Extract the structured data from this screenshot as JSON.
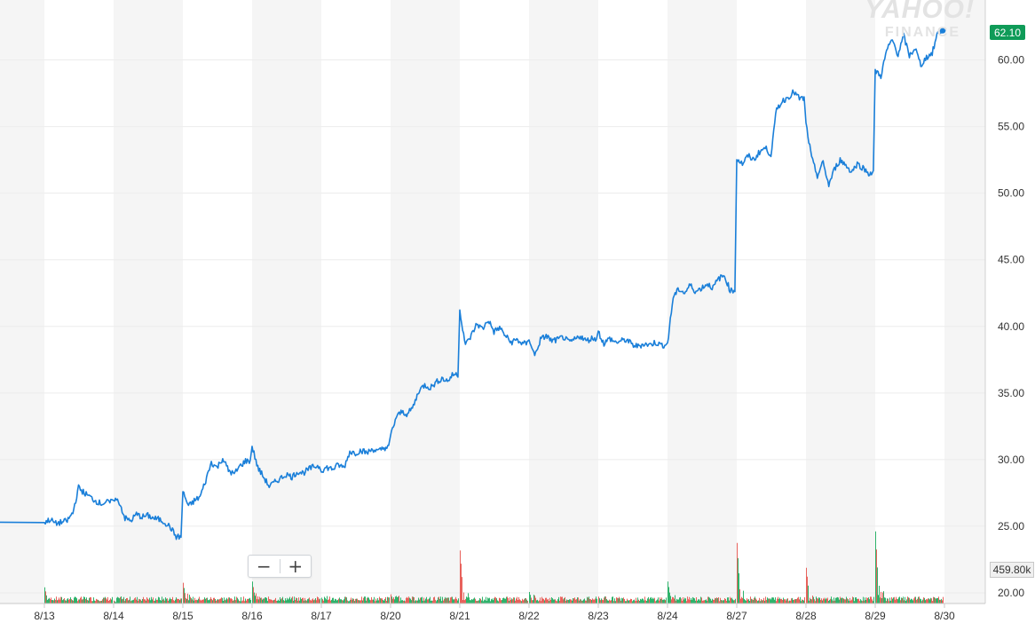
{
  "watermark": {
    "line1": "YAHOO!",
    "line2": "FINANCE"
  },
  "zoom": {
    "minus": "−",
    "plus": "+"
  },
  "current_price_label": "62.10",
  "volume_label": "459.80k",
  "colors": {
    "price_line": "#1a7fd9",
    "volume_up": "#2fb36b",
    "volume_down": "#e8625c",
    "price_badge": "#0f9b58",
    "band": "#f5f5f5",
    "grid": "#ececec"
  },
  "chart_data": {
    "type": "line",
    "title": "",
    "xlabel": "",
    "ylabel": "",
    "ylim": [
      19.2,
      64.5
    ],
    "yticks": [
      "20.00",
      "25.00",
      "30.00",
      "35.00",
      "40.00",
      "45.00",
      "50.00",
      "55.00",
      "60.00"
    ],
    "x_tick_labels": [
      "8/13",
      "8/14",
      "8/15",
      "8/16",
      "8/17",
      "8/20",
      "8/21",
      "8/22",
      "8/23",
      "8/24",
      "8/27",
      "8/28",
      "8/29",
      "8/30"
    ],
    "grid": true,
    "series": [
      {
        "values_by_day": [
          [
            25.3,
            25.5,
            25.2,
            25.3,
            25.4,
            26.0,
            27.9,
            27.5,
            27.2,
            26.9,
            26.7,
            26.8
          ],
          [
            27.1,
            26.8,
            25.6,
            25.4,
            25.9,
            25.7,
            25.8,
            25.6,
            25.5,
            25.3,
            24.9,
            24.2
          ],
          [
            27.6,
            26.5,
            26.9,
            27.2,
            28.4,
            29.8,
            29.4,
            30.1,
            29.2,
            28.9,
            29.5,
            29.9
          ],
          [
            31.0,
            29.4,
            28.7,
            28.0,
            28.3,
            28.6,
            28.9,
            28.7,
            29.1,
            29.0,
            29.3,
            29.5
          ],
          [
            29.2,
            29.4,
            29.3,
            29.6,
            29.4,
            30.6,
            30.5,
            30.7,
            30.5,
            30.8,
            30.6,
            30.9
          ],
          [
            31.8,
            33.2,
            33.6,
            33.4,
            34.0,
            35.2,
            35.6,
            35.4,
            35.8,
            36.1,
            35.9,
            36.4
          ],
          [
            41.2,
            38.6,
            39.3,
            40.2,
            39.8,
            40.5,
            39.6,
            39.9,
            39.3,
            38.8,
            39.0,
            38.7
          ],
          [
            39.1,
            37.8,
            39.0,
            39.3,
            38.9,
            39.0,
            39.2,
            38.8,
            39.0,
            39.3,
            38.9,
            39.1
          ],
          [
            39.6,
            38.7,
            39.1,
            38.8,
            38.9,
            39.0,
            38.6,
            38.5,
            38.7,
            38.6,
            38.8,
            38.6
          ],
          [
            38.7,
            42.2,
            42.8,
            42.5,
            43.1,
            42.6,
            42.9,
            43.2,
            42.9,
            43.6,
            43.8,
            42.7
          ],
          [
            52.6,
            52.2,
            52.8,
            52.5,
            53.1,
            53.4,
            52.9,
            56.3,
            56.9,
            57.2,
            57.6,
            57.1
          ],
          [
            55.2,
            52.6,
            51.3,
            52.3,
            50.6,
            51.8,
            52.5,
            52.1,
            51.6,
            52.2,
            51.9,
            51.5
          ],
          [
            59.2,
            58.8,
            60.7,
            61.5,
            60.4,
            61.8,
            60.3,
            60.9,
            59.6,
            60.2,
            60.5,
            62.1
          ]
        ]
      }
    ],
    "volume": {
      "label_max": "459.80k",
      "spikes_by_day": [
        0.28,
        0.05,
        0.36,
        0.38,
        0.1,
        0.16,
        0.92,
        0.2,
        0.12,
        0.38,
        1.05,
        0.62,
        1.25
      ]
    }
  }
}
